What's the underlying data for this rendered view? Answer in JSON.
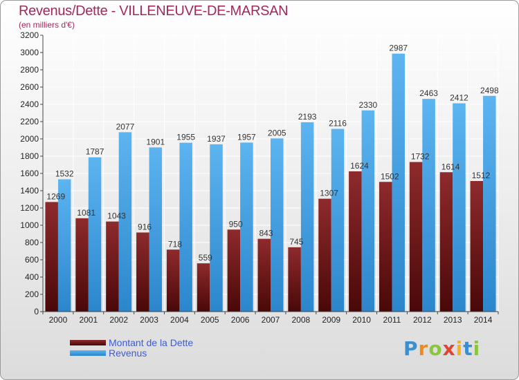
{
  "chart_data": {
    "type": "bar",
    "title": "Revenus/Dette - VILLENEUVE-DE-MARSAN",
    "subtitle": "(en milliers d'€)",
    "categories": [
      "2000",
      "2001",
      "2002",
      "2003",
      "2004",
      "2005",
      "2006",
      "2007",
      "2008",
      "2009",
      "2010",
      "2011",
      "2012",
      "2013",
      "2014"
    ],
    "series": [
      {
        "name": "Montant de la Dette",
        "values": [
          1269,
          1081,
          1043,
          916,
          718,
          559,
          950,
          843,
          745,
          1307,
          1624,
          1502,
          1732,
          1614,
          1512
        ],
        "labels": [
          "1269",
          "1081",
          "1043",
          "916",
          "718",
          "559",
          "950",
          "843",
          "745",
          "1307",
          "1624",
          "1502",
          "1732",
          "1614",
          "1512"
        ],
        "color": "#7b1f22"
      },
      {
        "name": "Revenus",
        "values": [
          1532,
          1787,
          2077,
          1901,
          1955,
          1937,
          1957,
          2005,
          2193,
          2116,
          2330,
          2987,
          2463,
          2412,
          2498
        ],
        "labels": [
          "1532",
          "1787",
          "2077",
          "1901",
          "1955",
          "1937",
          "1957",
          "2005",
          "2193",
          "2116",
          "2330",
          "2987",
          "2463",
          "2412",
          "2498"
        ],
        "color": "#4aa3e6"
      }
    ],
    "yticks": [
      0,
      200,
      400,
      600,
      800,
      1000,
      1200,
      1400,
      1600,
      1800,
      2000,
      2200,
      2400,
      2600,
      2800,
      3000,
      3200
    ],
    "ylim": [
      0,
      3200
    ],
    "grid": true,
    "legend_position": "bottom-left"
  },
  "logo": {
    "letters": [
      "P",
      "r",
      "o",
      "x",
      "i",
      "t",
      "i"
    ]
  }
}
